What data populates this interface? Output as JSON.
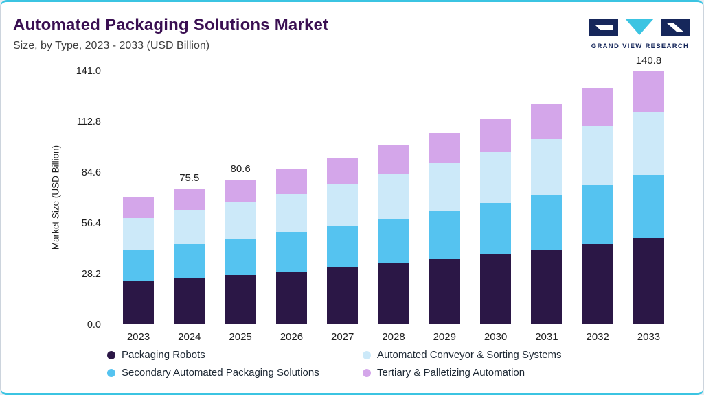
{
  "header": {
    "title": "Automated Packaging Solutions Market",
    "subtitle": "Size, by Type, 2023 - 2033 (USD Billion)",
    "brand": "GRAND VIEW RESEARCH"
  },
  "chart_data": {
    "type": "bar",
    "stacked": true,
    "title": "Automated Packaging Solutions Market Size, by Type, 2023 - 2033 (USD Billion)",
    "ylabel": "Market Size (USD Billion)",
    "xlabel": "",
    "ylim": [
      0,
      141.0
    ],
    "yticks": [
      141.0,
      112.8,
      84.6,
      56.4,
      28.2,
      0.0
    ],
    "grid": false,
    "legend_position": "bottom",
    "categories": [
      "2023",
      "2024",
      "2025",
      "2026",
      "2027",
      "2028",
      "2029",
      "2030",
      "2031",
      "2032",
      "2033"
    ],
    "series": [
      {
        "name": "Packaging Robots",
        "color": "#2b1746",
        "values": [
          23.9,
          25.7,
          27.4,
          29.4,
          31.5,
          33.8,
          36.2,
          38.8,
          41.6,
          44.6,
          47.9
        ]
      },
      {
        "name": "Secondary Automated Packaging Solutions",
        "color": "#55c3f0",
        "values": [
          17.6,
          18.9,
          20.2,
          21.6,
          23.2,
          24.8,
          26.6,
          28.5,
          30.6,
          32.8,
          35.2
        ]
      },
      {
        "name": "Automated Conveyor & Sorting Systems",
        "color": "#cce9f9",
        "values": [
          17.6,
          18.9,
          20.2,
          21.6,
          23.2,
          24.8,
          26.6,
          28.5,
          30.6,
          32.8,
          35.2
        ]
      },
      {
        "name": "Tertiary & Palletizing Automation",
        "color": "#d4a6ea",
        "values": [
          11.3,
          12.0,
          12.8,
          13.8,
          14.7,
          15.9,
          17.0,
          18.3,
          19.5,
          20.9,
          22.5
        ]
      }
    ],
    "totals": [
      70.4,
      75.5,
      80.6,
      86.4,
      92.6,
      99.3,
      106.4,
      114.1,
      122.3,
      131.1,
      140.8
    ],
    "bar_labels": [
      "",
      "75.5",
      "80.6",
      "",
      "",
      "",
      "",
      "",
      "",
      "",
      "140.8"
    ]
  },
  "legend": {
    "items": [
      {
        "label": "Packaging Robots",
        "color": "#2b1746"
      },
      {
        "label": "Automated Conveyor & Sorting Systems",
        "color": "#cce9f9"
      },
      {
        "label": "Secondary Automated Packaging Solutions",
        "color": "#55c3f0"
      },
      {
        "label": "Tertiary & Palletizing Automation",
        "color": "#d4a6ea"
      }
    ]
  },
  "colors": {
    "accent": "#3bc4e2",
    "title": "#3a0f52",
    "navy": "#16275b"
  }
}
